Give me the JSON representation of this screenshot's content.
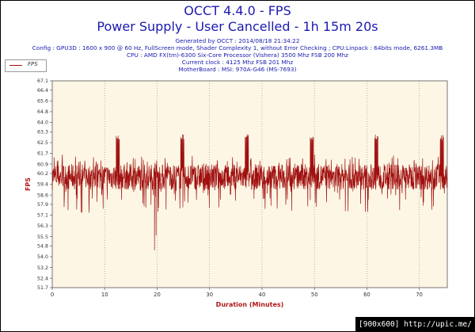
{
  "chart_data": {
    "type": "line",
    "title": "OCCT 4.4.0 - FPS",
    "subtitle": "Power Supply - User Cancelled - 1h 15m 20s",
    "info_lines": [
      "Generated by OCCT : 2014/08/18 21:34:22",
      "Config : GPU3D : 1600 x 900 @ 60 Hz, FullScreen mode, Shader Complexity 1, without Error Checking ; CPU:Linpack : 64bits mode, 6261.3MB",
      "CPU : AMD FX(tm)-6300 Six-Core Processor (Vishera) 3500 Mhz FSB 200 Mhz",
      "Current clock : 4125 Mhz FSB 201 Mhz",
      "MotherBoard : MSI: 970A-G46 (MS-7693)"
    ],
    "xlabel": "Duration (Minutes)",
    "ylabel": "FPS",
    "xlim": [
      0,
      75.33
    ],
    "ylim": [
      51.7,
      67.1
    ],
    "x_ticks": [
      "0",
      "10",
      "20",
      "30",
      "40",
      "50",
      "60",
      "70"
    ],
    "x_tick_values": [
      0,
      10,
      20,
      30,
      40,
      50,
      60,
      70
    ],
    "y_ticks": [
      "51.7",
      "52.4",
      "53.2",
      "54.0",
      "54.8",
      "55.5",
      "56.3",
      "57.1",
      "57.9",
      "58.6",
      "59.4",
      "60.2",
      "60.9",
      "61.7",
      "62.5",
      "63.3",
      "64.0",
      "64.8",
      "65.6",
      "66.4",
      "67.1"
    ],
    "grid": true,
    "legend": {
      "position": "top-left"
    },
    "series": [
      {
        "name": "FPS",
        "color": "#a01010",
        "band": {
          "low": 59.0,
          "high": 60.9
        },
        "spike_low": 57.3,
        "spike_high": 61.6,
        "period_peaks": [
          {
            "x": 12.5,
            "value": 63.1
          },
          {
            "x": 24.8,
            "value": 63.1
          },
          {
            "x": 37.1,
            "value": 63.1
          },
          {
            "x": 49.5,
            "value": 63.1
          },
          {
            "x": 61.8,
            "value": 63.1
          },
          {
            "x": 74.3,
            "value": 63.1
          }
        ],
        "dips": [
          {
            "x": 5.7,
            "value": 57.3
          },
          {
            "x": 7.0,
            "value": 57.3
          },
          {
            "x": 19.5,
            "value": 54.5
          },
          {
            "x": 19.8,
            "value": 55.6
          }
        ]
      }
    ]
  },
  "watermark": "[900x600] http://upic.me/"
}
